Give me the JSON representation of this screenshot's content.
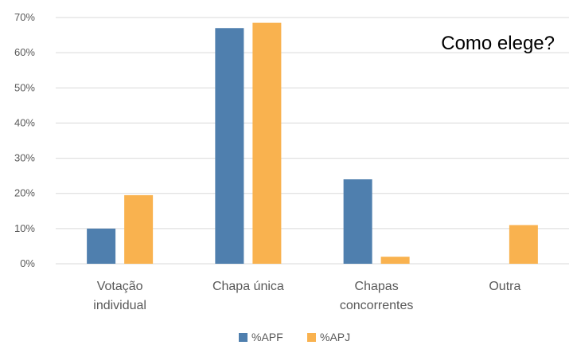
{
  "chart_data": {
    "type": "bar",
    "title": "Como elege?",
    "categories": [
      [
        "Votação",
        "individual"
      ],
      [
        "Chapa única"
      ],
      [
        "Chapas",
        "concorrentes"
      ],
      [
        "Outra"
      ]
    ],
    "series": [
      {
        "name": "%APF",
        "color": "#4f7fae",
        "values": [
          10,
          67,
          24,
          0
        ]
      },
      {
        "name": "%APJ",
        "color": "#f9b24f",
        "values": [
          19.5,
          68.5,
          2,
          11
        ]
      }
    ],
    "y_ticks": [
      "0%",
      "10%",
      "20%",
      "30%",
      "40%",
      "50%",
      "60%",
      "70%"
    ],
    "ylim": [
      0,
      70
    ],
    "grid": true,
    "legend_position": "bottom"
  }
}
